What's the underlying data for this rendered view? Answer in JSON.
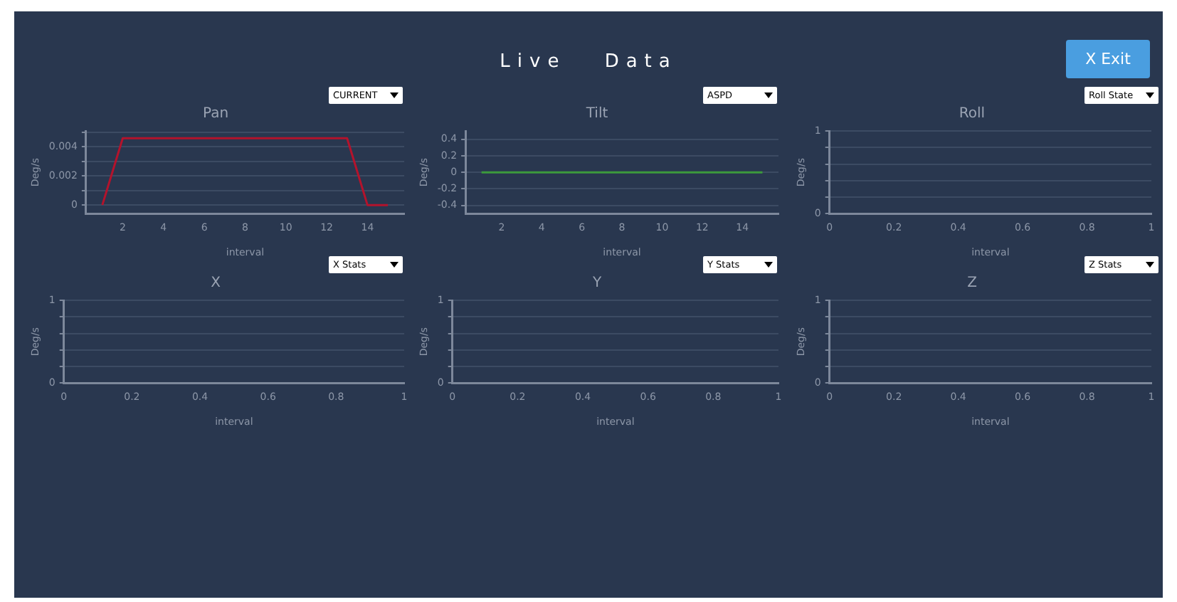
{
  "chart_data": [
    {
      "type": "other",
      "title": "Live Data",
      "annotations": [
        "X Exit"
      ]
    },
    {
      "type": "line",
      "title": "Pan",
      "xlabel": "interval",
      "ylabel": "Deg/s",
      "annotations": [
        "CURRENT"
      ],
      "grid": "y",
      "legend": false,
      "marker": "none",
      "line_style": "solid",
      "xlim": [
        0.2,
        15.8
      ],
      "xticks": [
        2,
        4,
        6,
        8,
        10,
        12,
        14
      ],
      "ylim": [
        -0.0006,
        0.0051
      ],
      "yticks": [
        0,
        {
          "value": 0.001,
          "label": null
        },
        0.002,
        {
          "value": 0.003,
          "label": null
        },
        0.004,
        {
          "value": 0.005,
          "label": null
        }
      ],
      "x": [
        1,
        2,
        3,
        4,
        5,
        6,
        7,
        8,
        9,
        10,
        11,
        12,
        13,
        14,
        15
      ],
      "series": [
        {
          "color": "#b3132c",
          "values": [
            0,
            0.0046,
            0.0046,
            0.0046,
            0.0046,
            0.0046,
            0.0046,
            0.0046,
            0.0046,
            0.0046,
            0.0046,
            0.0046,
            0.0046,
            0,
            0
          ]
        }
      ]
    },
    {
      "type": "line",
      "title": "Tilt",
      "xlabel": "interval",
      "ylabel": "Deg/s",
      "annotations": [
        "ASPD"
      ],
      "grid": "y",
      "legend": false,
      "marker": "none",
      "line_style": "solid",
      "xlim": [
        0.2,
        15.8
      ],
      "xticks": [
        2,
        4,
        6,
        8,
        10,
        12,
        14
      ],
      "ylim": [
        -0.5,
        0.5
      ],
      "yticks": [
        -0.4,
        -0.2,
        0,
        0.2,
        0.4
      ],
      "x": [
        1,
        2,
        3,
        4,
        5,
        6,
        7,
        8,
        9,
        10,
        11,
        12,
        13,
        14,
        15
      ],
      "series": [
        {
          "color": "#3c9a3c",
          "values": [
            0,
            0,
            0,
            0,
            0,
            0,
            0,
            0,
            0,
            0,
            0,
            0,
            0,
            0,
            0
          ]
        }
      ]
    },
    {
      "type": "line",
      "title": "Roll",
      "xlabel": "interval",
      "ylabel": "Deg/s",
      "annotations": [
        "Roll State"
      ],
      "grid": "y",
      "legend": false,
      "xlim": [
        0,
        1
      ],
      "xticks": [
        0,
        0.2,
        0.4,
        0.6,
        0.8,
        1
      ],
      "ylim": [
        0,
        1
      ],
      "yticks": [
        0,
        {
          "value": 0.2,
          "label": null
        },
        {
          "value": 0.4,
          "label": null
        },
        {
          "value": 0.6,
          "label": null
        },
        {
          "value": 0.8,
          "label": null
        },
        1
      ]
    },
    {
      "type": "line",
      "title": "X",
      "xlabel": "interval",
      "ylabel": "Deg/s",
      "annotations": [
        "X Stats"
      ],
      "grid": "y",
      "legend": false,
      "xlim": [
        0,
        1
      ],
      "xticks": [
        0,
        0.2,
        0.4,
        0.6,
        0.8,
        1
      ],
      "ylim": [
        0,
        1
      ],
      "yticks": [
        0,
        {
          "value": 0.2,
          "label": null
        },
        {
          "value": 0.4,
          "label": null
        },
        {
          "value": 0.6,
          "label": null
        },
        {
          "value": 0.8,
          "label": null
        },
        1
      ]
    },
    {
      "type": "line",
      "title": "Y",
      "xlabel": "interval",
      "ylabel": "Deg/s",
      "annotations": [
        "Y Stats"
      ],
      "grid": "y",
      "legend": false,
      "xlim": [
        0,
        1
      ],
      "xticks": [
        0,
        0.2,
        0.4,
        0.6,
        0.8,
        1
      ],
      "ylim": [
        0,
        1
      ],
      "yticks": [
        0,
        {
          "value": 0.2,
          "label": null
        },
        {
          "value": 0.4,
          "label": null
        },
        {
          "value": 0.6,
          "label": null
        },
        {
          "value": 0.8,
          "label": null
        },
        1
      ]
    },
    {
      "type": "line",
      "title": "Z",
      "xlabel": "interval",
      "ylabel": "Deg/s",
      "annotations": [
        "Z Stats"
      ],
      "grid": "y",
      "legend": false,
      "xlim": [
        0,
        1
      ],
      "xticks": [
        0,
        0.2,
        0.4,
        0.6,
        0.8,
        1
      ],
      "ylim": [
        0,
        1
      ],
      "yticks": [
        0,
        {
          "value": 0.2,
          "label": null
        },
        {
          "value": 0.4,
          "label": null
        },
        {
          "value": 0.6,
          "label": null
        },
        {
          "value": 0.8,
          "label": null
        },
        1
      ]
    }
  ]
}
